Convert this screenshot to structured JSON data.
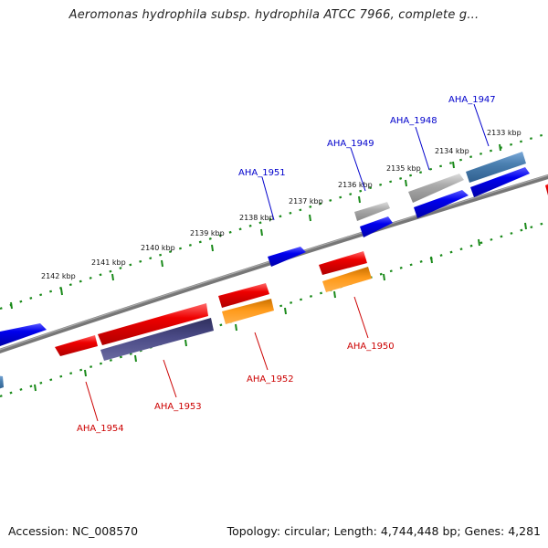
{
  "title": "Aeromonas hydrophila subsp. hydrophila ATCC 7966, complete g...",
  "footer": {
    "accession": "Accession: NC_008570",
    "topology": "Topology: circular; Length: 4,744,448 bp; Genes: 4,281"
  },
  "colors": {
    "forward_label": "#0000cc",
    "reverse_label": "#cc0000",
    "backbone": "#7a7a7a",
    "ticks": "#1a8a1a",
    "blue": "#0000ee",
    "red": "#ee0000",
    "orange": "#ff8c00",
    "purple": "#44447a",
    "steel": "#4a7fb0",
    "grey": "#aaaaaa"
  },
  "kbp_labels": [
    "2133 kbp",
    "2134 kbp",
    "2135 kbp",
    "2136 kbp",
    "2137 kbp",
    "2138 kbp",
    "2139 kbp",
    "2140 kbp",
    "2141 kbp",
    "2142 kbp"
  ],
  "genes": [
    {
      "name": "AHA_1947",
      "strand": "forward"
    },
    {
      "name": "AHA_1948",
      "strand": "forward"
    },
    {
      "name": "AHA_1949",
      "strand": "forward"
    },
    {
      "name": "AHA_1951",
      "strand": "forward"
    },
    {
      "name": "AHA_1950",
      "strand": "reverse"
    },
    {
      "name": "AHA_1952",
      "strand": "reverse"
    },
    {
      "name": "AHA_1953",
      "strand": "reverse"
    },
    {
      "name": "AHA_1954",
      "strand": "reverse"
    }
  ]
}
